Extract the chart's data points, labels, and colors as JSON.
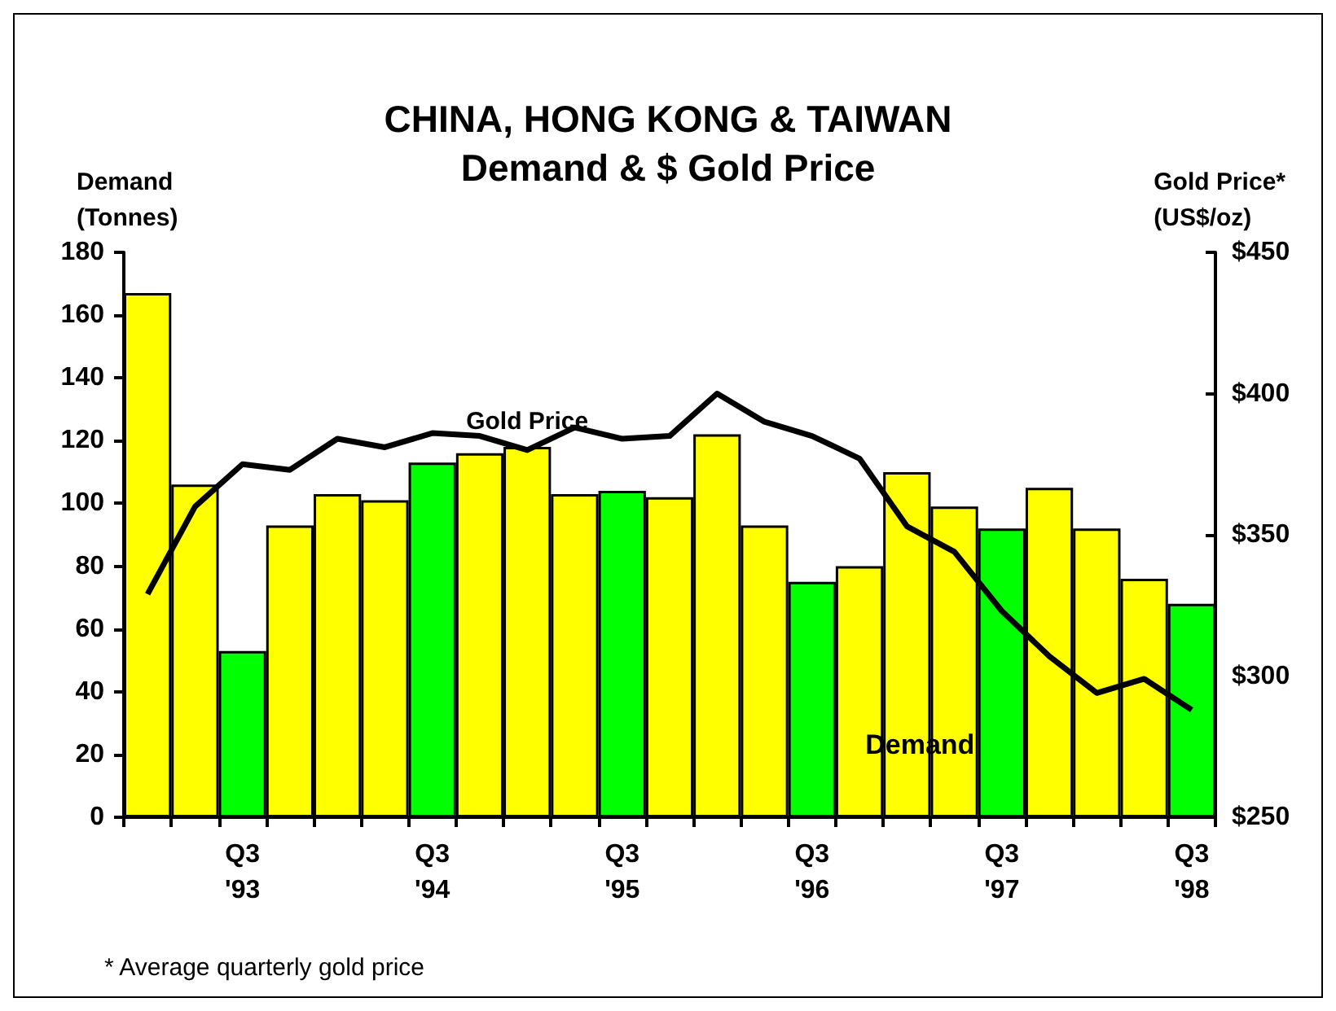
{
  "chart_data": {
    "type": "bar",
    "title": "CHINA, HONG KONG & TAIWAN\nDemand & $ Gold Price",
    "ylabel": "Demand\n(Tonnes)",
    "y2label": "Gold Price*\n(US$/oz)",
    "annotations": [
      "* Average quarterly gold price"
    ],
    "categories": [
      null,
      null,
      "Q3\n'93",
      null,
      null,
      null,
      "Q3\n'94",
      null,
      null,
      null,
      "Q3\n'95",
      null,
      null,
      null,
      "Q3\n'96",
      null,
      null,
      null,
      "Q3\n'97",
      null,
      null,
      null,
      "Q3\n'98"
    ],
    "series": [
      {
        "name": "Demand",
        "colors": [
          "#ffff00",
          "#ffff00",
          "#00ff00",
          "#ffff00",
          "#ffff00",
          "#ffff00",
          "#00ff00",
          "#ffff00",
          "#ffff00",
          "#ffff00",
          "#00ff00",
          "#ffff00",
          "#ffff00",
          "#ffff00",
          "#00ff00",
          "#ffff00",
          "#ffff00",
          "#ffff00",
          "#00ff00",
          "#ffff00",
          "#ffff00",
          "#ffff00",
          "#00ff00"
        ],
        "values": [
          167,
          106,
          53,
          93,
          103,
          101,
          113,
          116,
          118,
          103,
          104,
          102,
          122,
          93,
          75,
          80,
          110,
          99,
          92,
          105,
          92,
          76,
          68
        ]
      },
      {
        "name": "Gold Price",
        "type": "line",
        "axis": "y2",
        "color": "#000000",
        "values": [
          329,
          360,
          375,
          373,
          384,
          381,
          386,
          385,
          380,
          388,
          384,
          385,
          400,
          390,
          385,
          377,
          353,
          344,
          323,
          307,
          294,
          299,
          288
        ]
      }
    ],
    "ylim": [
      0,
      180
    ],
    "yticks": [
      0,
      20,
      40,
      60,
      80,
      100,
      120,
      140,
      160,
      180
    ],
    "y2lim": [
      250,
      450
    ],
    "y2ticks": [
      {
        "value": 250,
        "label": "$250"
      },
      {
        "value": 300,
        "label": "$300"
      },
      {
        "value": 350,
        "label": "$350"
      },
      {
        "value": 400,
        "label": "$400"
      },
      {
        "value": 450,
        "label": "$450"
      }
    ],
    "grid": false,
    "legend": false,
    "marker": "none",
    "line_style": "solid"
  }
}
